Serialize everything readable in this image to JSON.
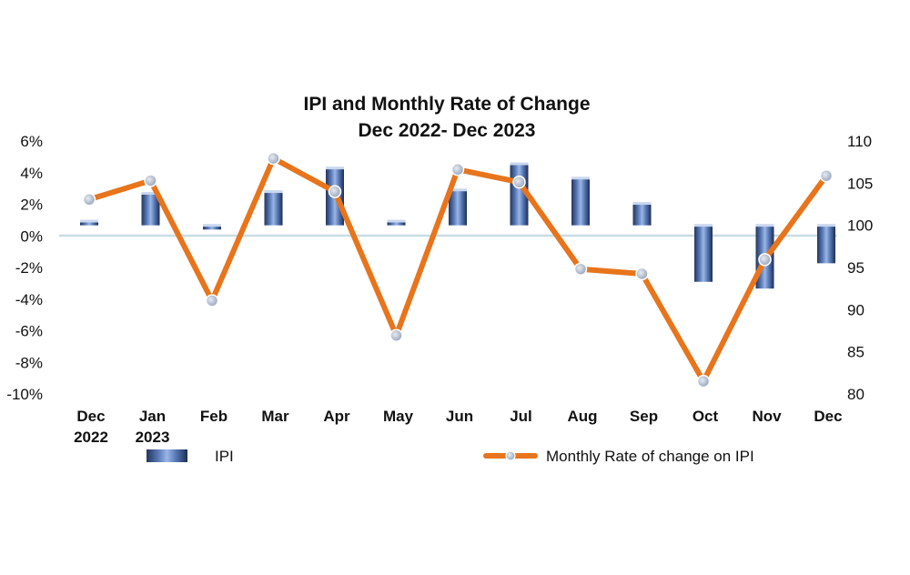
{
  "chart_data": {
    "type": "bar+line",
    "title": [
      "IPI and Monthly Rate of Change",
      "Dec 2022- Dec 2023"
    ],
    "categories": [
      [
        "Dec",
        "2022"
      ],
      [
        "Jan",
        "2023"
      ],
      [
        "Feb"
      ],
      [
        "Mar"
      ],
      [
        "Apr"
      ],
      [
        "May"
      ],
      [
        "Jun"
      ],
      [
        "Jul"
      ],
      [
        "Aug"
      ],
      [
        "Sep"
      ],
      [
        "Oct"
      ],
      [
        "Nov"
      ],
      [
        "Dec"
      ]
    ],
    "left_axis": {
      "ylim": [
        -10,
        6
      ],
      "ticks": [
        6,
        4,
        2,
        0,
        -2,
        -4,
        -6,
        -8,
        -10
      ],
      "tick_labels": [
        "6%",
        "4%",
        "2%",
        "0%",
        "-2%",
        "-4%",
        "-6%",
        "-8%",
        "-10%"
      ]
    },
    "right_axis": {
      "ylim": [
        80,
        110
      ],
      "ticks": [
        110,
        105,
        100,
        95,
        90,
        85,
        80
      ],
      "tick_labels": [
        "110",
        "105",
        "100",
        "95",
        "90",
        "85",
        "80"
      ]
    },
    "series": [
      {
        "name": "IPI",
        "type": "bar",
        "axis": "right",
        "values": [
          100.5,
          103.8,
          99.5,
          104.0,
          106.8,
          100.5,
          104.2,
          107.3,
          105.6,
          102.6,
          93.3,
          92.5,
          95.5
        ]
      },
      {
        "name": "Monthly Rate of change on IPI",
        "type": "line",
        "axis": "left",
        "values": [
          2.3,
          3.5,
          -4.1,
          4.9,
          2.8,
          -6.3,
          4.2,
          3.4,
          -2.1,
          -2.4,
          -9.2,
          -1.5,
          3.8
        ]
      }
    ],
    "colors": {
      "bar": "#6f8fc8",
      "bar_dark": "#23365e",
      "line": "#e8741c",
      "marker": "#a9b6cc",
      "zero_line": "#c9dde3"
    },
    "legend": [
      {
        "label": "IPI",
        "kind": "bar"
      },
      {
        "label": "Monthly Rate of change on IPI",
        "kind": "line"
      }
    ]
  }
}
